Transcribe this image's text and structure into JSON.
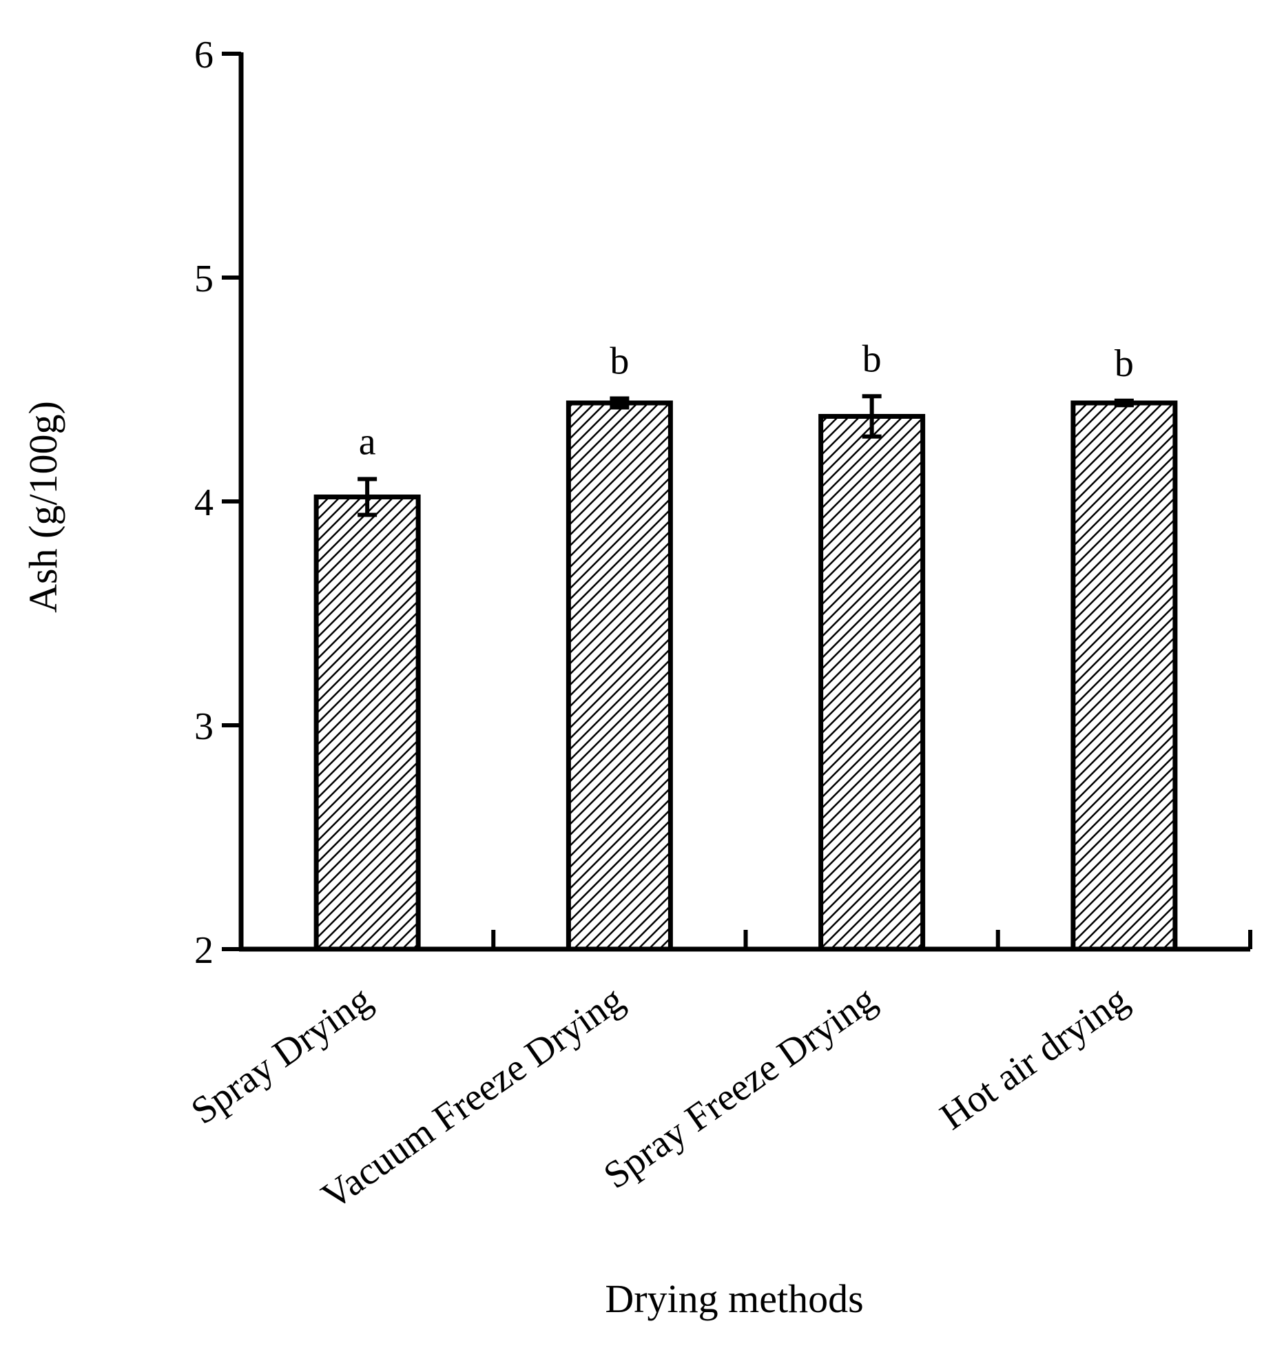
{
  "chart_data": {
    "type": "bar",
    "title": "",
    "xlabel": "Drying methods",
    "ylabel": "Ash (g/100g)",
    "categories": [
      "Spray Drying",
      "Vacuum Freeze Drying",
      "Spray Freeze Drying",
      "Hot air drying"
    ],
    "values": [
      4.02,
      4.44,
      4.38,
      4.44
    ],
    "errors": [
      0.08,
      0.02,
      0.09,
      0.01
    ],
    "significance": [
      "a",
      "b",
      "b",
      "b"
    ],
    "ylim": [
      2,
      6
    ],
    "yticks": [
      2,
      3,
      4,
      5,
      6
    ],
    "ytick_labels": [
      "2",
      "3",
      "4",
      "5",
      "6"
    ],
    "grid": false,
    "legend": "none",
    "bar_fill": "diagonal hatch",
    "colors": {
      "bar_edge": "#000000",
      "hatch": "#000000",
      "background": "#ffffff"
    }
  }
}
